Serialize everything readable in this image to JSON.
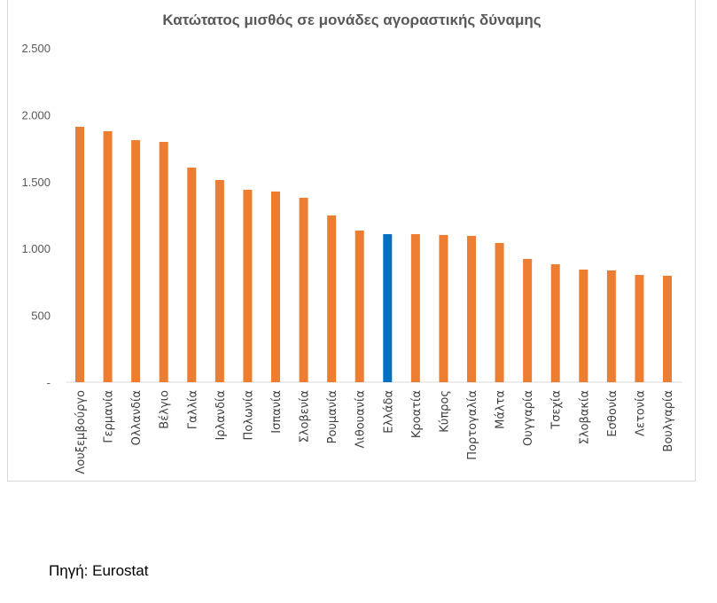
{
  "chart_data": {
    "type": "bar",
    "title": "Κατώτατος μισθός σε μονάδες αγοραστικής δύναμης",
    "xlabel": "",
    "ylabel": "",
    "ylim": [
      0,
      2500
    ],
    "yticks": [
      0,
      500,
      1000,
      1500,
      2000,
      2500
    ],
    "ytick_labels": [
      "-",
      "500",
      "1.000",
      "1.500",
      "2.000",
      "2.500"
    ],
    "grid": false,
    "categories": [
      "Λουξεμβούργο",
      "Γερμανία",
      "Ολλανδία",
      "Βέλγιο",
      "Γαλλία",
      "Ιρλανδία",
      "Πολωνία",
      "Ισπανία",
      "Σλοβενία",
      "Ρουμανία",
      "Λιθουανία",
      "Ελλάδα",
      "Κροατία",
      "Κύπρος",
      "Πορτογαλία",
      "Μάλτα",
      "Ουγγαρία",
      "Τσεχία",
      "Σλοβακία",
      "Εσθονία",
      "Λετονία",
      "Βουλγαρία"
    ],
    "values": [
      1910,
      1877,
      1810,
      1797,
      1605,
      1512,
      1439,
      1426,
      1379,
      1247,
      1134,
      1107,
      1107,
      1101,
      1094,
      1041,
      922,
      882,
      842,
      836,
      802,
      796
    ],
    "colors": {
      "default": "#ED7D31",
      "highlight": "#0070C0"
    },
    "highlight_category": "Ελλάδα"
  },
  "source": "Πηγή: Eurostat"
}
